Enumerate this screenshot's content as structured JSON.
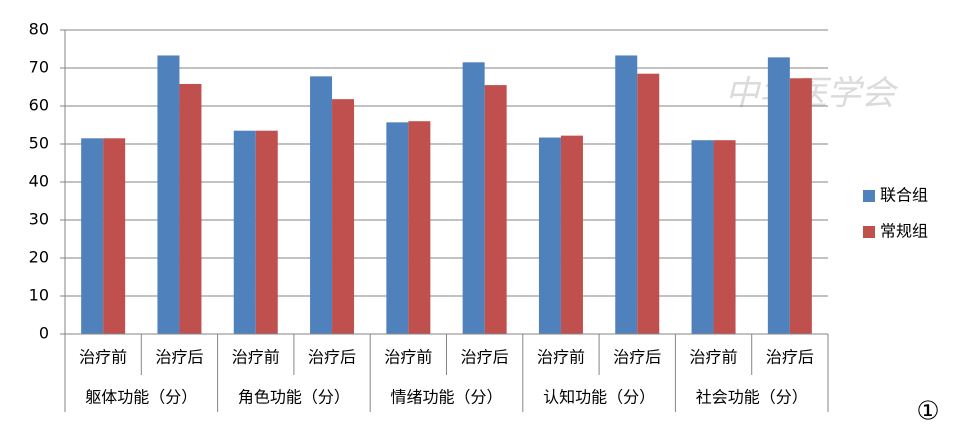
{
  "chart_data": {
    "type": "bar",
    "categories": [
      "治疗前",
      "治疗后",
      "治疗前",
      "治疗后",
      "治疗前",
      "治疗后",
      "治疗前",
      "治疗后",
      "治疗前",
      "治疗后"
    ],
    "groups": [
      "躯体功能（分）",
      "角色功能（分）",
      "情绪功能（分）",
      "认知功能（分）",
      "社会功能（分）"
    ],
    "series": [
      {
        "name": "联合组",
        "color": "#4f81bd",
        "values": [
          51.5,
          73.3,
          53.5,
          67.8,
          55.7,
          71.5,
          51.7,
          73.3,
          51,
          72.8
        ]
      },
      {
        "name": "常规组",
        "color": "#c0504d",
        "values": [
          51.5,
          65.8,
          53.5,
          61.8,
          56,
          65.5,
          52.2,
          68.5,
          51,
          67.3
        ]
      }
    ],
    "ylim": [
      0,
      80
    ],
    "yticks": [
      0,
      10,
      20,
      30,
      40,
      50,
      60,
      70,
      80
    ],
    "grid": true,
    "legend": "right",
    "annotation": "①",
    "watermark": "中华医学会"
  }
}
